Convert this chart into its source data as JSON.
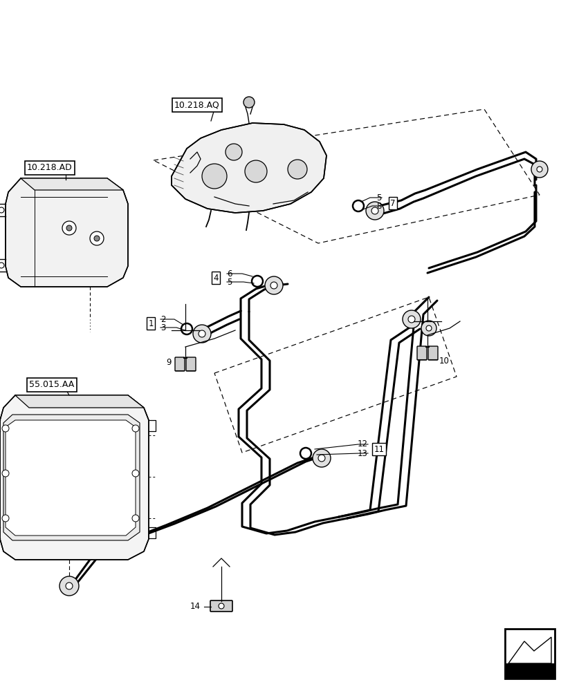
{
  "bg_color": "#ffffff",
  "figsize": [
    8.12,
    10.0
  ],
  "dpi": 100,
  "labels": {
    "10218AQ": "10.218.AQ",
    "10218AD": "10.218.AD",
    "55015AA": "55.015.AA"
  }
}
